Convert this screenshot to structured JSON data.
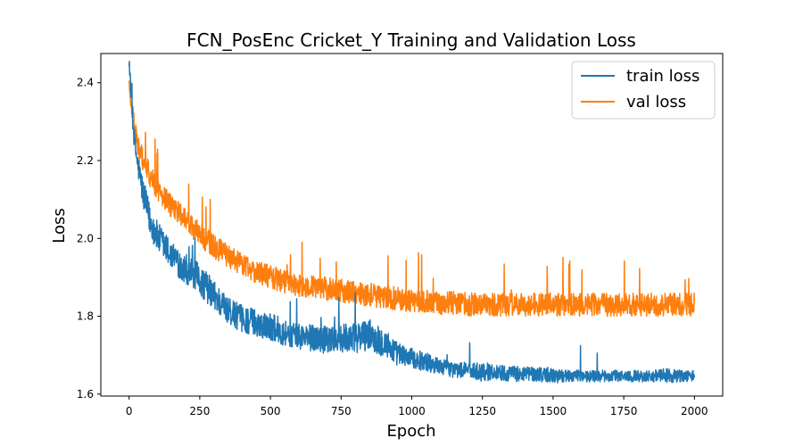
{
  "chart_data": {
    "type": "line",
    "title": "FCN_PosEnc Cricket_Y Training and Validation Loss",
    "xlabel": "Epoch",
    "ylabel": "Loss",
    "xlim": [
      -100,
      2100
    ],
    "ylim": [
      1.595,
      2.475
    ],
    "xticks": [
      0,
      250,
      500,
      750,
      1000,
      1250,
      1500,
      1750,
      2000
    ],
    "yticks": [
      1.6,
      1.8,
      2.0,
      2.2,
      2.4
    ],
    "ytick_labels": [
      "1.6",
      "1.8",
      "2.0",
      "2.2",
      "2.4"
    ],
    "grid": false,
    "legend": "top-right",
    "series": [
      {
        "name": "train loss",
        "color": "#1f77b4",
        "x": [
          0,
          10,
          20,
          30,
          40,
          50,
          75,
          100,
          150,
          200,
          250,
          300,
          350,
          400,
          450,
          500,
          550,
          600,
          650,
          700,
          750,
          800,
          850,
          900,
          950,
          1000,
          1050,
          1100,
          1150,
          1200,
          1250,
          1300,
          1350,
          1400,
          1450,
          1500,
          1550,
          1600,
          1650,
          1700,
          1750,
          1800,
          1850,
          1900,
          1950,
          2000
        ],
        "y": [
          2.46,
          2.33,
          2.24,
          2.19,
          2.15,
          2.11,
          2.04,
          2.0,
          1.95,
          1.92,
          1.89,
          1.85,
          1.81,
          1.79,
          1.78,
          1.77,
          1.755,
          1.745,
          1.74,
          1.735,
          1.74,
          1.74,
          1.75,
          1.73,
          1.7,
          1.69,
          1.68,
          1.67,
          1.66,
          1.66,
          1.655,
          1.655,
          1.65,
          1.65,
          1.65,
          1.645,
          1.645,
          1.645,
          1.645,
          1.645,
          1.645,
          1.645,
          1.645,
          1.645,
          1.645,
          1.645
        ],
        "noise": [
          0.02,
          0.03,
          0.03,
          0.03,
          0.035,
          0.04,
          0.04,
          0.04,
          0.04,
          0.04,
          0.04,
          0.04,
          0.035,
          0.035,
          0.035,
          0.035,
          0.035,
          0.035,
          0.035,
          0.035,
          0.035,
          0.04,
          0.04,
          0.04,
          0.03,
          0.025,
          0.025,
          0.02,
          0.02,
          0.02,
          0.025,
          0.02,
          0.02,
          0.02,
          0.02,
          0.02,
          0.015,
          0.015,
          0.015,
          0.015,
          0.015,
          0.015,
          0.015,
          0.02,
          0.015,
          0.015
        ]
      },
      {
        "name": "val loss",
        "color": "#ff7f0e",
        "x": [
          0,
          10,
          20,
          30,
          50,
          75,
          100,
          150,
          200,
          250,
          300,
          350,
          400,
          450,
          500,
          550,
          600,
          650,
          700,
          750,
          800,
          850,
          900,
          950,
          1000,
          1050,
          1100,
          1150,
          1200,
          1250,
          1300,
          1350,
          1400,
          1450,
          1500,
          1550,
          1600,
          1650,
          1700,
          1750,
          1800,
          1850,
          1900,
          1950,
          2000
        ],
        "y": [
          2.4,
          2.33,
          2.28,
          2.24,
          2.2,
          2.16,
          2.13,
          2.08,
          2.05,
          2.01,
          1.98,
          1.955,
          1.935,
          1.915,
          1.9,
          1.89,
          1.88,
          1.875,
          1.87,
          1.865,
          1.86,
          1.855,
          1.85,
          1.845,
          1.84,
          1.84,
          1.835,
          1.835,
          1.83,
          1.83,
          1.83,
          1.83,
          1.83,
          1.83,
          1.83,
          1.83,
          1.83,
          1.83,
          1.83,
          1.83,
          1.83,
          1.83,
          1.83,
          1.83,
          1.83
        ],
        "noise": [
          0.02,
          0.03,
          0.03,
          0.03,
          0.03,
          0.03,
          0.03,
          0.03,
          0.03,
          0.03,
          0.03,
          0.03,
          0.03,
          0.03,
          0.03,
          0.03,
          0.03,
          0.03,
          0.03,
          0.03,
          0.03,
          0.03,
          0.03,
          0.03,
          0.03,
          0.03,
          0.03,
          0.03,
          0.03,
          0.03,
          0.03,
          0.03,
          0.03,
          0.03,
          0.03,
          0.03,
          0.03,
          0.03,
          0.03,
          0.03,
          0.03,
          0.03,
          0.03,
          0.03,
          0.03
        ]
      }
    ]
  }
}
